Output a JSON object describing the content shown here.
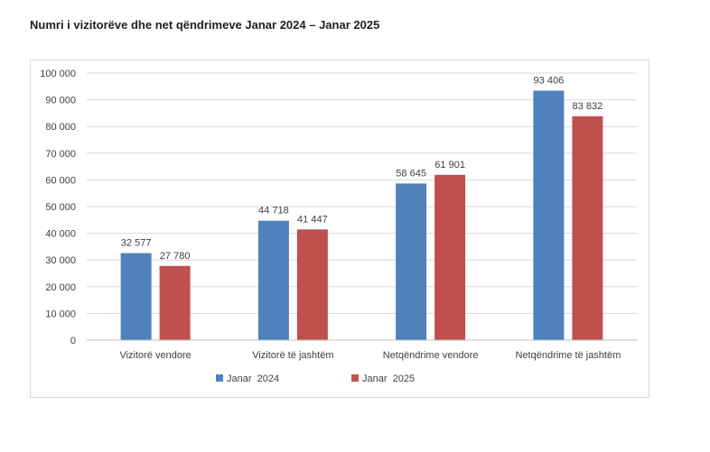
{
  "title": "Numri i vizitorëve dhe net qëndrimeve Janar 2024 – Janar 2025",
  "chart_data": {
    "type": "bar",
    "categories": [
      "Vizitorë vendore",
      "Vizitorë të jashtëm",
      "Netqëndrime vendore",
      "Netqëndrime të jashtëm"
    ],
    "series": [
      {
        "name": "Janar  2024",
        "values": [
          32577,
          44718,
          58645,
          93406
        ],
        "labels": [
          "32 577",
          "44 718",
          "58 645",
          "93 406"
        ],
        "color": "#4f81bd"
      },
      {
        "name": "Janar  2025",
        "values": [
          27780,
          41447,
          61901,
          83832
        ],
        "labels": [
          "27 780",
          "41 447",
          "61 901",
          "83 832"
        ],
        "color": "#c0504d"
      }
    ],
    "ylim": [
      0,
      100000
    ],
    "yticks": [
      0,
      10000,
      20000,
      30000,
      40000,
      50000,
      60000,
      70000,
      80000,
      90000,
      100000
    ],
    "ytick_labels": [
      "0",
      "10 000",
      "20 000",
      "30 000",
      "40 000",
      "50 000",
      "60 000",
      "70 000",
      "80 000",
      "90 000",
      "100 000"
    ],
    "grid": true,
    "legend_position": "bottom"
  }
}
